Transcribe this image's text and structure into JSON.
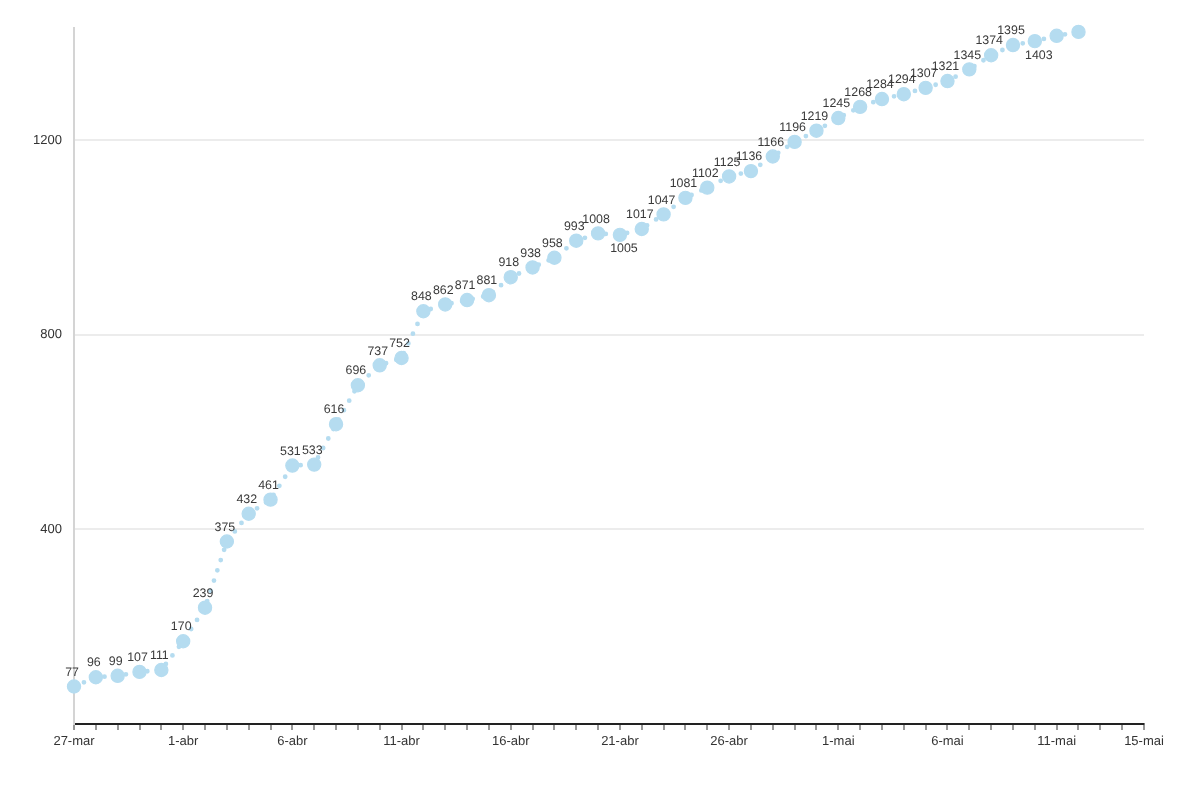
{
  "chart_data": {
    "type": "line",
    "x": [
      "--03-27",
      "--03-28",
      "--03-29",
      "--03-30",
      "--03-31",
      "--04-01",
      "--04-02",
      "--04-03",
      "--04-04",
      "--04-05",
      "--04-06",
      "--04-07",
      "--04-08",
      "--04-09",
      "--04-10",
      "--04-11",
      "--04-12",
      "--04-13",
      "--04-14",
      "--04-15",
      "--04-16",
      "--04-17",
      "--04-18",
      "--04-19",
      "--04-20",
      "--04-21",
      "--04-22",
      "--04-23",
      "--04-24",
      "--04-25",
      "--04-26",
      "--04-27",
      "--04-28",
      "--04-29",
      "--04-30",
      "--05-01",
      "--05-02",
      "--05-03",
      "--05-04",
      "--05-05",
      "--05-06",
      "--05-07",
      "--05-08",
      "--05-09",
      "--05-10",
      "--05-11",
      "--05-12"
    ],
    "values": [
      77,
      96,
      99,
      107,
      111,
      170,
      239,
      375,
      432,
      461,
      531,
      533,
      616,
      696,
      737,
      752,
      848,
      862,
      871,
      881,
      918,
      938,
      958,
      993,
      1008,
      1005,
      1017,
      1047,
      1081,
      1102,
      1125,
      1136,
      1166,
      1196,
      1219,
      1245,
      1268,
      1284,
      1294,
      1307,
      1321,
      1345,
      1374,
      1395,
      1403,
      1414,
      1422
    ],
    "value_labels": [
      "77",
      "96",
      "99",
      "107",
      "111",
      "170",
      "239",
      "375",
      "432",
      "461",
      "531",
      "533",
      "616",
      "696",
      "737",
      "752",
      "848",
      "862",
      "871",
      "881",
      "918",
      "938",
      "958",
      "993",
      "1008",
      "1005",
      "1017",
      "1047",
      "1081",
      "1102",
      "1125",
      "1136",
      "1166",
      "1196",
      "1219",
      "1245",
      "1268",
      "1284",
      "1294",
      "1307",
      "1321",
      "1345",
      "1374",
      "1395",
      "1403",
      null,
      null
    ],
    "color": "#b5dcf0",
    "marker": "circle",
    "line_style": "dotted",
    "grid": "y",
    "ylim": [
      0,
      1430
    ],
    "yticks": [
      400,
      800,
      1200
    ],
    "xlim": [
      "--03-27",
      "--05-15"
    ],
    "xticks": [
      {
        "value": "--03-27",
        "label": "27-mar"
      },
      {
        "value": "--03-28",
        "label": null
      },
      {
        "value": "--03-29",
        "label": null
      },
      {
        "value": "--03-30",
        "label": null
      },
      {
        "value": "--03-31",
        "label": null
      },
      {
        "value": "--04-01",
        "label": "1-abr"
      },
      {
        "value": "--04-02",
        "label": null
      },
      {
        "value": "--04-03",
        "label": null
      },
      {
        "value": "--04-04",
        "label": null
      },
      {
        "value": "--04-05",
        "label": null
      },
      {
        "value": "--04-06",
        "label": "6-abr"
      },
      {
        "value": "--04-07",
        "label": null
      },
      {
        "value": "--04-08",
        "label": null
      },
      {
        "value": "--04-09",
        "label": null
      },
      {
        "value": "--04-10",
        "label": null
      },
      {
        "value": "--04-11",
        "label": "11-abr"
      },
      {
        "value": "--04-12",
        "label": null
      },
      {
        "value": "--04-13",
        "label": null
      },
      {
        "value": "--04-14",
        "label": null
      },
      {
        "value": "--04-15",
        "label": null
      },
      {
        "value": "--04-16",
        "label": "16-abr"
      },
      {
        "value": "--04-17",
        "label": null
      },
      {
        "value": "--04-18",
        "label": null
      },
      {
        "value": "--04-19",
        "label": null
      },
      {
        "value": "--04-20",
        "label": null
      },
      {
        "value": "--04-21",
        "label": "21-abr"
      },
      {
        "value": "--04-22",
        "label": null
      },
      {
        "value": "--04-23",
        "label": null
      },
      {
        "value": "--04-24",
        "label": null
      },
      {
        "value": "--04-25",
        "label": null
      },
      {
        "value": "--04-26",
        "label": "26-abr"
      },
      {
        "value": "--04-27",
        "label": null
      },
      {
        "value": "--04-28",
        "label": null
      },
      {
        "value": "--04-29",
        "label": null
      },
      {
        "value": "--04-30",
        "label": null
      },
      {
        "value": "--05-01",
        "label": "1-mai"
      },
      {
        "value": "--05-02",
        "label": null
      },
      {
        "value": "--05-03",
        "label": null
      },
      {
        "value": "--05-04",
        "label": null
      },
      {
        "value": "--05-05",
        "label": null
      },
      {
        "value": "--05-06",
        "label": "6-mai"
      },
      {
        "value": "--05-07",
        "label": null
      },
      {
        "value": "--05-08",
        "label": null
      },
      {
        "value": "--05-09",
        "label": null
      },
      {
        "value": "--05-10",
        "label": null
      },
      {
        "value": "--05-11",
        "label": "11-mai"
      },
      {
        "value": "--05-12",
        "label": null
      },
      {
        "value": "--05-13",
        "label": null
      },
      {
        "value": "--05-14",
        "label": null
      },
      {
        "value": "--05-15",
        "label": "15-mai"
      }
    ]
  }
}
